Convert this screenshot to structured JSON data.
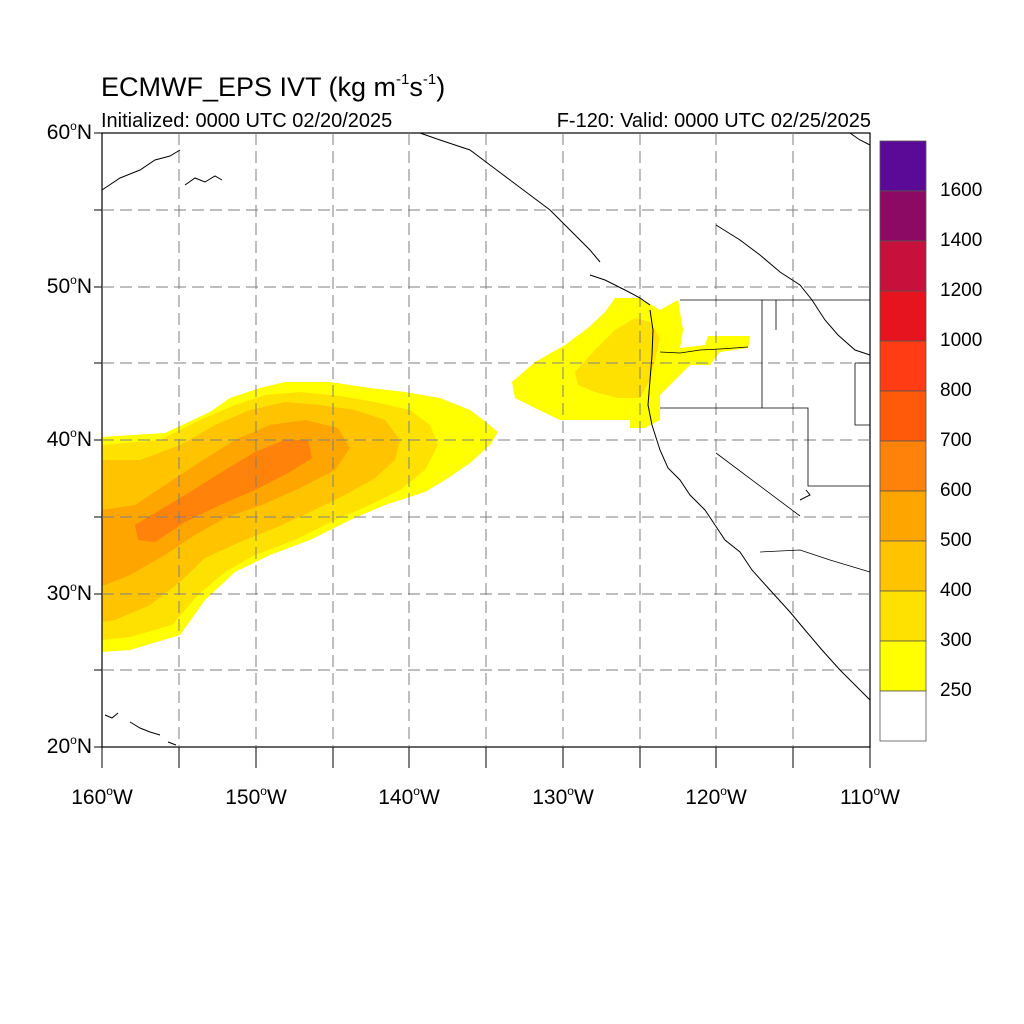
{
  "title": {
    "prefix": "ECMWF_EPS IVT (kg m",
    "exp1": "-1",
    "mid": "s",
    "exp2": "-1",
    "suffix": ")"
  },
  "subtitle_left": "Initialized: 0000 UTC 02/20/2025",
  "subtitle_right": "F-120: Valid: 0000 UTC 02/25/2025",
  "lat_labels": [
    {
      "num": "60",
      "hemi": "N"
    },
    {
      "num": "50",
      "hemi": "N"
    },
    {
      "num": "40",
      "hemi": "N"
    },
    {
      "num": "30",
      "hemi": "N"
    },
    {
      "num": "20",
      "hemi": "N"
    }
  ],
  "lon_labels": [
    {
      "num": "160",
      "hemi": "W"
    },
    {
      "num": "150",
      "hemi": "W"
    },
    {
      "num": "140",
      "hemi": "W"
    },
    {
      "num": "130",
      "hemi": "W"
    },
    {
      "num": "120",
      "hemi": "W"
    },
    {
      "num": "110",
      "hemi": "W"
    }
  ],
  "colorbar": {
    "labels": [
      "1600",
      "1400",
      "1200",
      "1000",
      "800",
      "700",
      "600",
      "500",
      "400",
      "300",
      "250"
    ],
    "colors": [
      "#5a0a96",
      "#8c0a64",
      "#c8103c",
      "#e6141e",
      "#ff3c14",
      "#ff5a0a",
      "#ff820a",
      "#ffa500",
      "#ffc300",
      "#ffe100",
      "#ffff00",
      "#ffffff"
    ]
  },
  "ivt_colors": {
    "c250": "#ffff00",
    "c300": "#ffe100",
    "c400": "#ffc300",
    "c500": "#ffa500",
    "c600": "#ff820a"
  }
}
